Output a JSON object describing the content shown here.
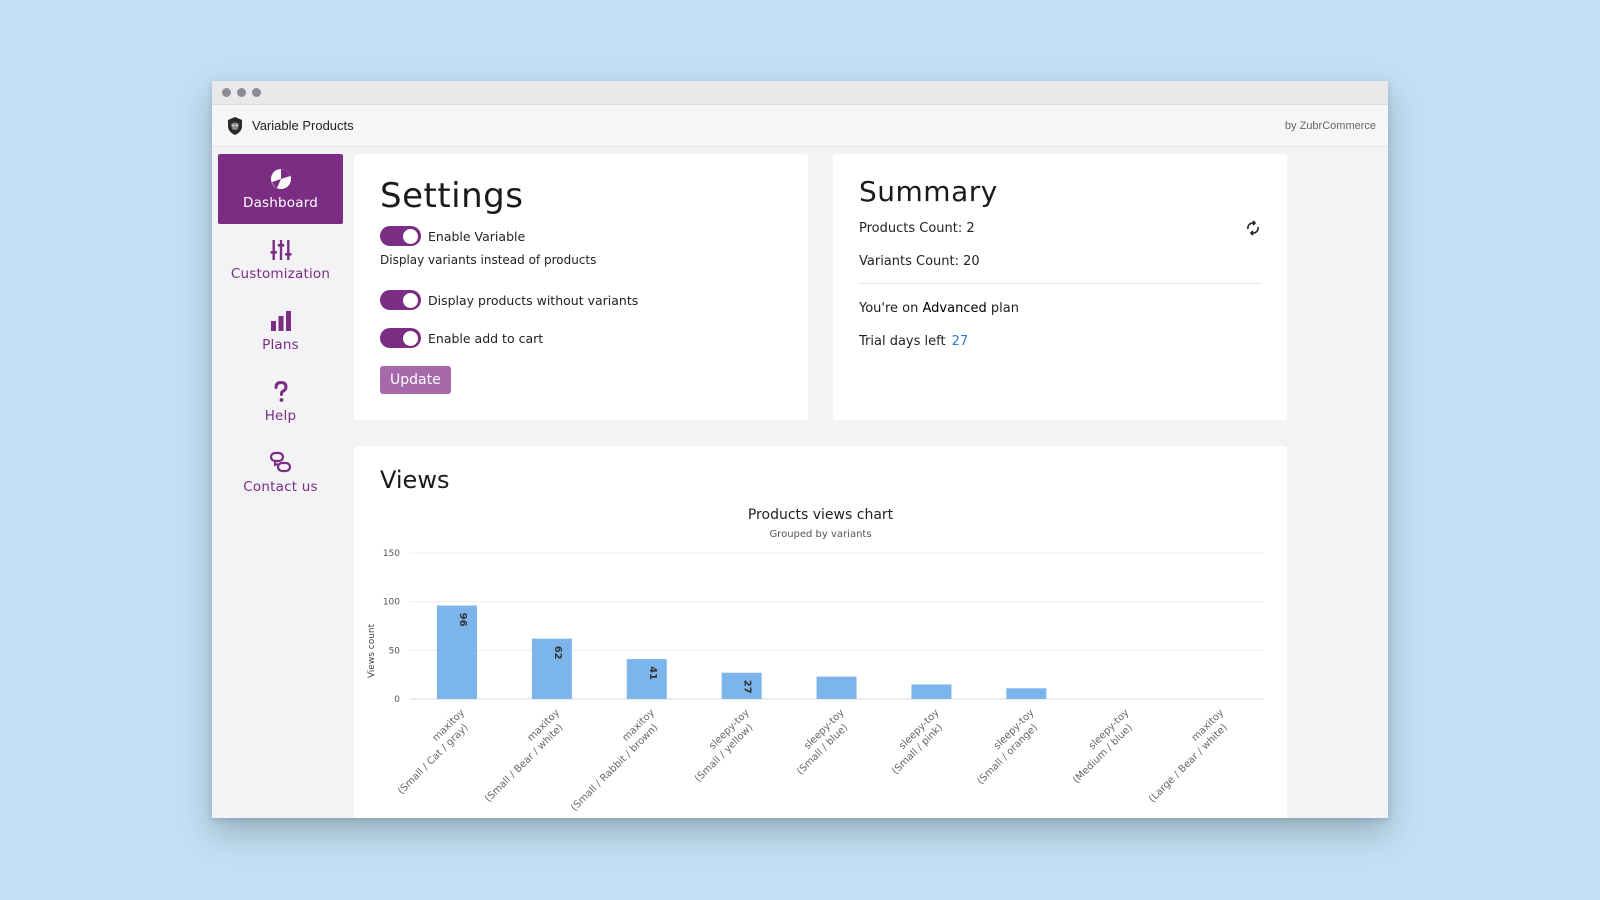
{
  "app": {
    "name": "Variable Products",
    "byline": "by ZubrCommerce",
    "accent_color": "#7a2d82",
    "logo_icon": "bison-shield-icon"
  },
  "sidebar": {
    "items": [
      {
        "label": "Dashboard",
        "icon": "pie-chart-icon",
        "active": true
      },
      {
        "label": "Customization",
        "icon": "sliders-icon",
        "active": false
      },
      {
        "label": "Plans",
        "icon": "bar-chart-icon",
        "active": false
      },
      {
        "label": "Help",
        "icon": "question-mark-icon",
        "active": false
      },
      {
        "label": "Contact us",
        "icon": "chat-bubbles-icon",
        "active": false
      }
    ]
  },
  "settings": {
    "title": "Settings",
    "enable_variable": {
      "label": "Enable Variable",
      "on": true
    },
    "enable_variable_helper": "Display variants instead of products",
    "display_without_variants": {
      "label": "Display products without variants",
      "on": true
    },
    "enable_add_to_cart": {
      "label": "Enable add to cart",
      "on": true
    },
    "update_label": "Update"
  },
  "summary": {
    "title": "Summary",
    "products_count": "Products Count: 2",
    "variants_count": "Variants Count: 20",
    "plan_prefix": "You're on",
    "plan_name": "Advanced",
    "plan_suffix": "plan",
    "trial_label": "Trial days left",
    "trial_days": "27",
    "refresh_icon": "refresh-icon"
  },
  "views": {
    "title": "Views"
  },
  "chart_data": {
    "type": "bar",
    "title": "Products views chart",
    "subtitle": "Grouped by variants",
    "ylabel": "Views count",
    "ylim": [
      0,
      150
    ],
    "yticks": [
      0,
      50,
      100,
      150
    ],
    "grid": true,
    "bar_color": "#7cb5ec",
    "categories": [
      [
        "maxitoy",
        "(Small / Cat / gray)"
      ],
      [
        "maxitoy",
        "(Small / Bear / white)"
      ],
      [
        "maxitoy",
        "(Small / Rabbit / brown)"
      ],
      [
        "sleepy-toy",
        "(Small / yellow)"
      ],
      [
        "sleepy-toy",
        "(Small / blue)"
      ],
      [
        "sleepy-toy",
        "(Small / pink)"
      ],
      [
        "sleepy-toy",
        "(Small / orange)"
      ],
      [
        "sleepy-toy",
        "(Medium / blue)"
      ],
      [
        "maxitoy",
        "(Large / Bear / white)"
      ]
    ],
    "values": [
      96,
      62,
      41,
      27,
      23,
      15,
      11,
      0,
      0
    ],
    "data_labels": [
      "96",
      "62",
      "41",
      "27",
      "",
      "",
      "",
      "",
      ""
    ]
  }
}
